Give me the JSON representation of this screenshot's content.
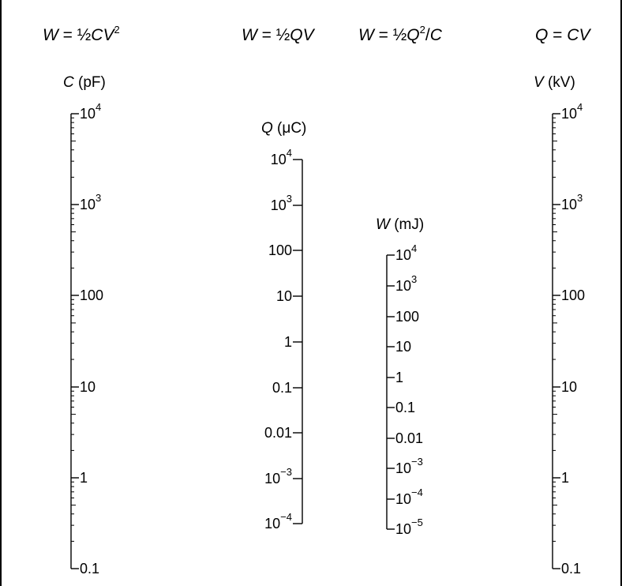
{
  "formulas": [
    {
      "lhs": "W",
      "parts": [
        {
          "t": " = ½"
        },
        {
          "t": "CV",
          "i": true
        },
        {
          "t": "2",
          "sup": true
        }
      ]
    },
    {
      "lhs": "W",
      "parts": [
        {
          "t": " = ½"
        },
        {
          "t": "QV",
          "i": true
        }
      ]
    },
    {
      "lhs": "W",
      "parts": [
        {
          "t": " = ½"
        },
        {
          "t": "Q",
          "i": true
        },
        {
          "t": "2",
          "sup": true
        },
        {
          "t": "/"
        },
        {
          "t": "C",
          "i": true
        }
      ]
    },
    {
      "lhs": "Q",
      "parts": [
        {
          "t": " = "
        },
        {
          "t": "CV",
          "i": true
        }
      ]
    }
  ],
  "scales": [
    {
      "id": "capacitance",
      "symbol": "C",
      "unit": " (pF)",
      "ticks": [
        {
          "base": "10",
          "exp": "4"
        },
        {
          "base": "10",
          "exp": "3"
        },
        {
          "base": "100"
        },
        {
          "base": "10"
        },
        {
          "base": "1"
        },
        {
          "base": "0.1"
        }
      ]
    },
    {
      "id": "charge",
      "symbol": "Q",
      "unit": " (μC)",
      "ticks": [
        {
          "base": "10",
          "exp": "4"
        },
        {
          "base": "10",
          "exp": "3"
        },
        {
          "base": "100"
        },
        {
          "base": "10"
        },
        {
          "base": "1"
        },
        {
          "base": "0.1"
        },
        {
          "base": "0.01"
        },
        {
          "base": "10",
          "exp": "−3"
        },
        {
          "base": "10",
          "exp": "−4"
        }
      ]
    },
    {
      "id": "energy",
      "symbol": "W",
      "unit": " (mJ)",
      "ticks": [
        {
          "base": "10",
          "exp": "4"
        },
        {
          "base": "10",
          "exp": "3"
        },
        {
          "base": "100"
        },
        {
          "base": "10"
        },
        {
          "base": "1"
        },
        {
          "base": "0.1"
        },
        {
          "base": "0.01"
        },
        {
          "base": "10",
          "exp": "−3"
        },
        {
          "base": "10",
          "exp": "−4"
        },
        {
          "base": "10",
          "exp": "−5"
        }
      ]
    },
    {
      "id": "voltage",
      "symbol": "V",
      "unit": " (kV)",
      "ticks": [
        {
          "base": "10",
          "exp": "4"
        },
        {
          "base": "10",
          "exp": "3"
        },
        {
          "base": "100"
        },
        {
          "base": "10"
        },
        {
          "base": "1"
        },
        {
          "base": "0.1"
        }
      ]
    }
  ]
}
